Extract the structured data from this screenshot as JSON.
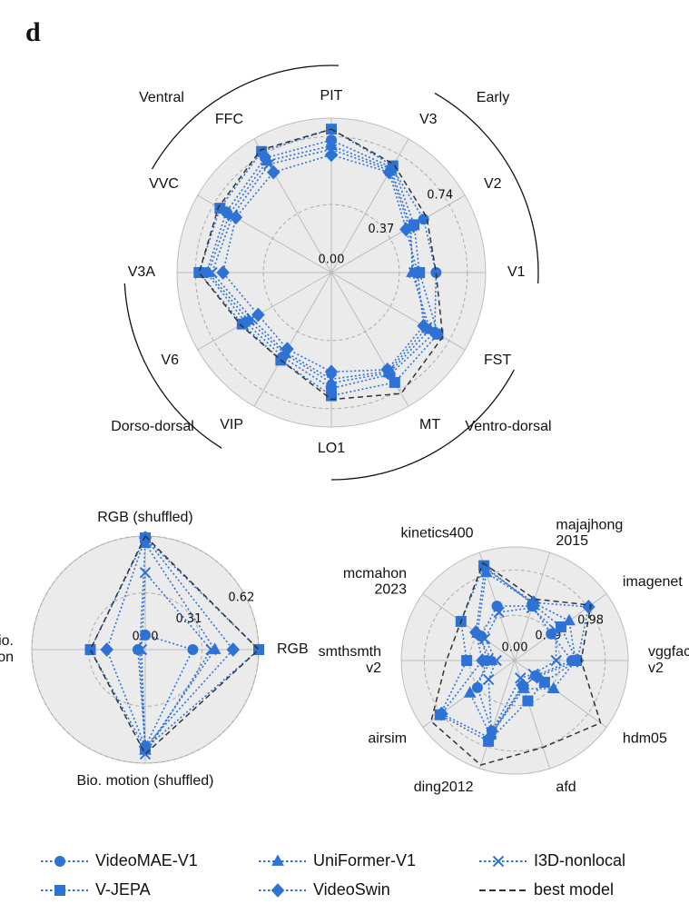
{
  "panel_label": "d",
  "chart_data": [
    {
      "type": "radar",
      "categories": [
        "PIT",
        "V3",
        "V2",
        "V1",
        "FST",
        "MT",
        "LO1",
        "VIP",
        "V6",
        "V3A",
        "VVC",
        "FFC"
      ],
      "ylim": [
        0,
        0.84
      ],
      "yticks": [
        {
          "value": 0,
          "label": "0.00"
        },
        0.37,
        0.74
      ],
      "groups": [
        "Ventral",
        "Early",
        "Dorso-dorsal",
        "Ventro-dorsal"
      ],
      "series": [
        {
          "name": "VideoMAE-V1",
          "color": "#2f72d6",
          "marker": "circle",
          "linestyle": "dotted",
          "values": [
            0.72,
            0.66,
            0.58,
            0.57,
            0.65,
            0.64,
            0.63,
            0.53,
            0.54,
            0.68,
            0.66,
            0.72
          ]
        },
        {
          "name": "V-JEPA",
          "color": "#2f72d6",
          "marker": "square",
          "linestyle": "dotted",
          "values": [
            0.78,
            0.67,
            0.52,
            0.48,
            0.67,
            0.69,
            0.67,
            0.55,
            0.56,
            0.72,
            0.7,
            0.76
          ]
        },
        {
          "name": "UniFormer-V1",
          "color": "#2f72d6",
          "marker": "triangle",
          "linestyle": "dotted",
          "values": [
            0.69,
            0.65,
            0.5,
            0.44,
            0.62,
            0.63,
            0.6,
            0.51,
            0.52,
            0.67,
            0.64,
            0.7
          ]
        },
        {
          "name": "VideoSwin",
          "color": "#2f72d6",
          "marker": "diamond",
          "linestyle": "dotted",
          "values": [
            0.64,
            0.63,
            0.47,
            0.47,
            0.58,
            0.61,
            0.54,
            0.48,
            0.46,
            0.59,
            0.6,
            0.63
          ]
        },
        {
          "name": "I3D-nonlocal",
          "color": "#2f72d6",
          "marker": "x",
          "linestyle": "dotted",
          "values": [
            0.67,
            0.64,
            0.49,
            0.45,
            0.6,
            0.62,
            0.58,
            0.5,
            0.5,
            0.65,
            0.62,
            0.68
          ]
        },
        {
          "name": "best model",
          "color": "#333333",
          "marker": "none",
          "linestyle": "dashed",
          "values": [
            0.78,
            0.68,
            0.6,
            0.57,
            0.7,
            0.76,
            0.69,
            0.55,
            0.57,
            0.72,
            0.71,
            0.77
          ]
        }
      ]
    },
    {
      "type": "radar",
      "categories": [
        "RGB (shuffled)",
        "RGB",
        "Bio. motion (shuffled)",
        "Bio.\nmotion"
      ],
      "ylim": [
        0,
        0.62
      ],
      "yticks": [
        {
          "value": 0,
          "label": "0.00"
        },
        0.31,
        0.62
      ],
      "series": [
        {
          "name": "VideoMAE-V1",
          "color": "#2f72d6",
          "marker": "circle",
          "linestyle": "dotted",
          "values": [
            0.08,
            0.26,
            0.53,
            0.04
          ]
        },
        {
          "name": "V-JEPA",
          "color": "#2f72d6",
          "marker": "square",
          "linestyle": "dotted",
          "values": [
            0.61,
            0.62,
            0.54,
            0.3
          ]
        },
        {
          "name": "UniFormer-V1",
          "color": "#2f72d6",
          "marker": "triangle",
          "linestyle": "dotted",
          "values": [
            0.58,
            0.38,
            0.55,
            0.03
          ]
        },
        {
          "name": "VideoSwin",
          "color": "#2f72d6",
          "marker": "diamond",
          "linestyle": "dotted",
          "values": [
            0.61,
            0.48,
            0.53,
            0.21
          ]
        },
        {
          "name": "I3D-nonlocal",
          "color": "#2f72d6",
          "marker": "x",
          "linestyle": "dotted",
          "values": [
            0.42,
            0.36,
            0.57,
            0.02
          ]
        },
        {
          "name": "best model",
          "color": "#333333",
          "marker": "none",
          "linestyle": "dashed",
          "values": [
            0.62,
            0.62,
            0.57,
            0.3
          ]
        }
      ]
    },
    {
      "type": "radar",
      "categories": [
        "kinetics400",
        "majajhong\n2015",
        "imagenet",
        "vggface\nv2",
        "hdm05",
        "afd",
        "ding2012",
        "airsim",
        "smthsmth\nv2",
        "mcmahon\n2023"
      ],
      "ylim": [
        0,
        1.23
      ],
      "yticks": [
        {
          "value": 0,
          "label": "0.00"
        },
        0.49,
        0.98
      ],
      "series": [
        {
          "name": "VideoMAE-V1",
          "color": "#2f72d6",
          "marker": "circle",
          "linestyle": "dotted",
          "values": [
            0.62,
            0.62,
            0.49,
            0.62,
            0.28,
            0.3,
            0.8,
            0.5,
            0.3,
            0.45
          ]
        },
        {
          "name": "V-JEPA",
          "color": "#2f72d6",
          "marker": "square",
          "linestyle": "dotted",
          "values": [
            1.08,
            0.64,
            0.62,
            0.67,
            0.4,
            0.46,
            0.92,
            1.0,
            0.52,
            0.72
          ]
        },
        {
          "name": "UniFormer-V1",
          "color": "#2f72d6",
          "marker": "triangle",
          "linestyle": "dotted",
          "values": [
            1.0,
            0.66,
            0.73,
            0.66,
            0.52,
            0.32,
            0.85,
            0.6,
            0.25,
            0.5
          ]
        },
        {
          "name": "VideoSwin",
          "color": "#2f72d6",
          "marker": "diamond",
          "linestyle": "dotted",
          "values": [
            1.05,
            0.66,
            0.99,
            0.68,
            0.3,
            0.28,
            0.88,
            0.98,
            0.35,
            0.52
          ]
        },
        {
          "name": "I3D-nonlocal",
          "color": "#2f72d6",
          "marker": "x",
          "linestyle": "dotted",
          "values": [
            0.55,
            0.6,
            0.55,
            0.45,
            0.25,
            0.2,
            0.82,
            0.35,
            0.2,
            0.4
          ]
        },
        {
          "name": "best model",
          "color": "#333333",
          "marker": "none",
          "linestyle": "dashed",
          "values": [
            1.11,
            0.7,
            1.02,
            0.72,
            1.15,
            0.99,
            1.19,
            1.12,
            0.74,
            0.72
          ]
        }
      ]
    }
  ]
}
